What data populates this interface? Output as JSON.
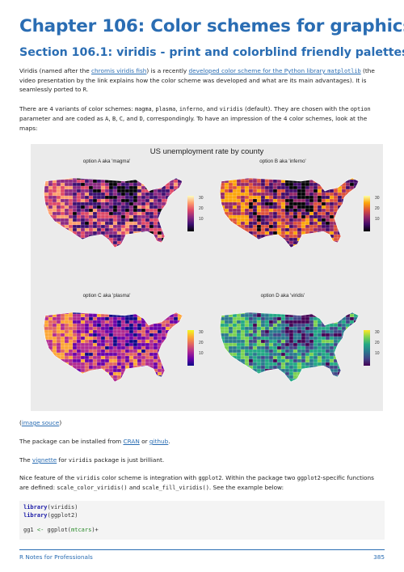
{
  "chapter_title": "Chapter 106: Color schemes for graphics",
  "section_title": "Section 106.1: viridis - print and colorblind friendly palettes",
  "para1": {
    "t1": "Viridis (named after the ",
    "link1": "chromis viridis fish",
    "t2": ") is a recently ",
    "link2": "developed color scheme for the Python library ",
    "link2_code": "matplotlib",
    "t3": " (the video presentation by the link explains how the color scheme was developed and what are its main advantages). It is seamlessly ported to ",
    "code_r": "R",
    "t4": "."
  },
  "para2": {
    "t1": "There are 4 variants of color schemes: ",
    "c1": "magma",
    "c2": "plasma",
    "c3": "inferno",
    "c4": "viridis",
    "t2": " (default). They are chosen with the ",
    "c5": "option",
    "t3": " parameter and are coded as ",
    "a": "A",
    "b": "B",
    "c": "C",
    "d": "D",
    "t4": ", correspondingly. To have an impression of the 4 color schemes, look at the maps:"
  },
  "figure": {
    "title": "US unemployment rate by county",
    "panels": [
      {
        "title": "option A aka 'magma'",
        "palette": "magma",
        "colors": [
          "#000004",
          "#3b0f70",
          "#8c2981",
          "#de4968",
          "#fe9f6d",
          "#fcfdbf"
        ]
      },
      {
        "title": "option B aka 'inferno'",
        "palette": "inferno",
        "colors": [
          "#000004",
          "#420a68",
          "#932667",
          "#dd513a",
          "#fca50a",
          "#fcffa4"
        ]
      },
      {
        "title": "option C aka 'plasma'",
        "palette": "plasma",
        "colors": [
          "#0d0887",
          "#6a00a8",
          "#b12a90",
          "#e16462",
          "#fca636",
          "#f0f921"
        ]
      },
      {
        "title": "option D aka 'viridis'",
        "palette": "viridis",
        "colors": [
          "#440154",
          "#414487",
          "#2a788e",
          "#22a884",
          "#7ad151",
          "#fde725"
        ]
      }
    ],
    "legend_labels": [
      "30",
      "20",
      "10"
    ]
  },
  "caption": {
    "open": "(",
    "link": "image souce",
    "close": ")"
  },
  "para3": {
    "t1": "The package can be installed from ",
    "link1": "CRAN",
    "t2": " or ",
    "link2": "github",
    "t3": "."
  },
  "para4": {
    "t1": "The ",
    "link": "vignette",
    "t2": " for ",
    "code": "viridis",
    "t3": " package is just brilliant."
  },
  "para5": {
    "t1": "Nice feature of the ",
    "c1": "viridis",
    "t2": " color scheme is integration with ",
    "c2": "ggplot2",
    "t3": ". Within the package two ",
    "c3": "ggplot2",
    "t4": "-specific functions are defined: ",
    "c4": "scale_color_viridis()",
    "t5": " and ",
    "c5": "scale_fill_viridis()",
    "t6": ". See the example below:"
  },
  "code": {
    "l1_kw": "library",
    "l1_rest": "(viridis)",
    "l2_kw": "library",
    "l2_rest": "(ggplot2)",
    "l3_a": "gg1 ",
    "l3_op": "<-",
    "l3_b": " ggplot(",
    "l3_arg": "mtcars",
    "l3_c": ")+"
  },
  "footer": {
    "book": "R Notes for Professionals",
    "page": "385"
  }
}
